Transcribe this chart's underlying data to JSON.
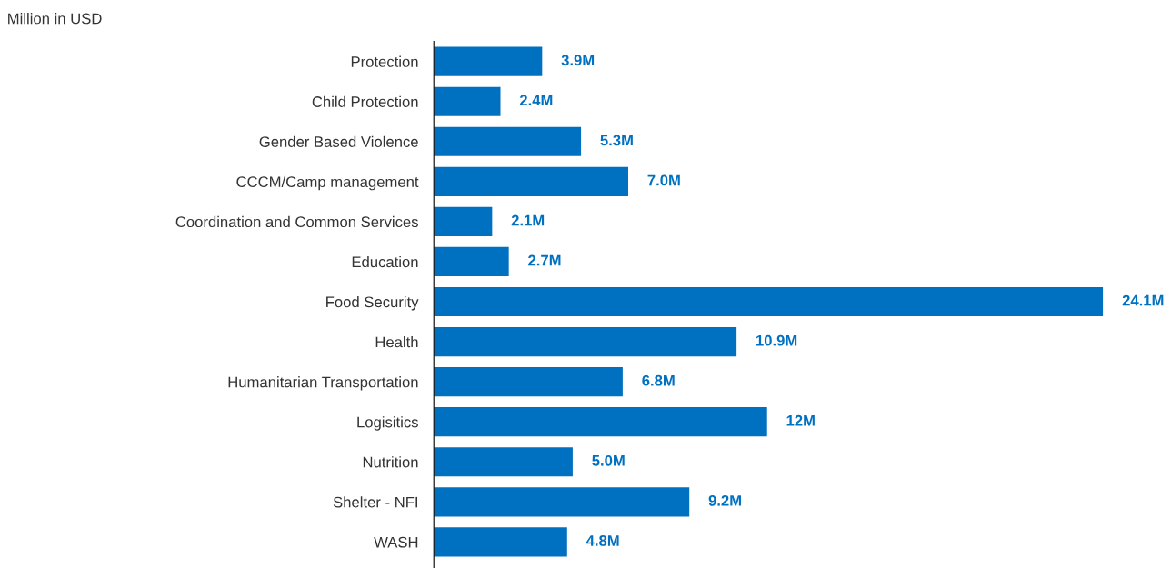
{
  "chart_data": {
    "type": "bar",
    "orientation": "horizontal",
    "title": "Million in USD",
    "categories": [
      "Protection",
      "Child Protection",
      "Gender Based Violence",
      "CCCM/Camp management",
      "Coordination and Common Services",
      "Education",
      "Food Security",
      "Health",
      "Humanitarian Transportation",
      "Logisitics",
      "Nutrition",
      "Shelter - NFI",
      "WASH"
    ],
    "values": [
      3.9,
      2.4,
      5.3,
      7.0,
      2.1,
      2.7,
      24.1,
      10.9,
      6.8,
      12,
      5.0,
      9.2,
      4.8
    ],
    "value_labels": [
      "3.9M",
      "2.4M",
      "5.3M",
      "7.0M",
      "2.1M",
      "2.7M",
      "24.1M",
      "10.9M",
      "6.8M",
      "12M",
      "5.0M",
      "9.2M",
      "4.8M"
    ],
    "color": "#0070c0",
    "xlim": [
      0,
      24.1
    ],
    "tick_labels": "y",
    "grid": false,
    "legend": false
  }
}
